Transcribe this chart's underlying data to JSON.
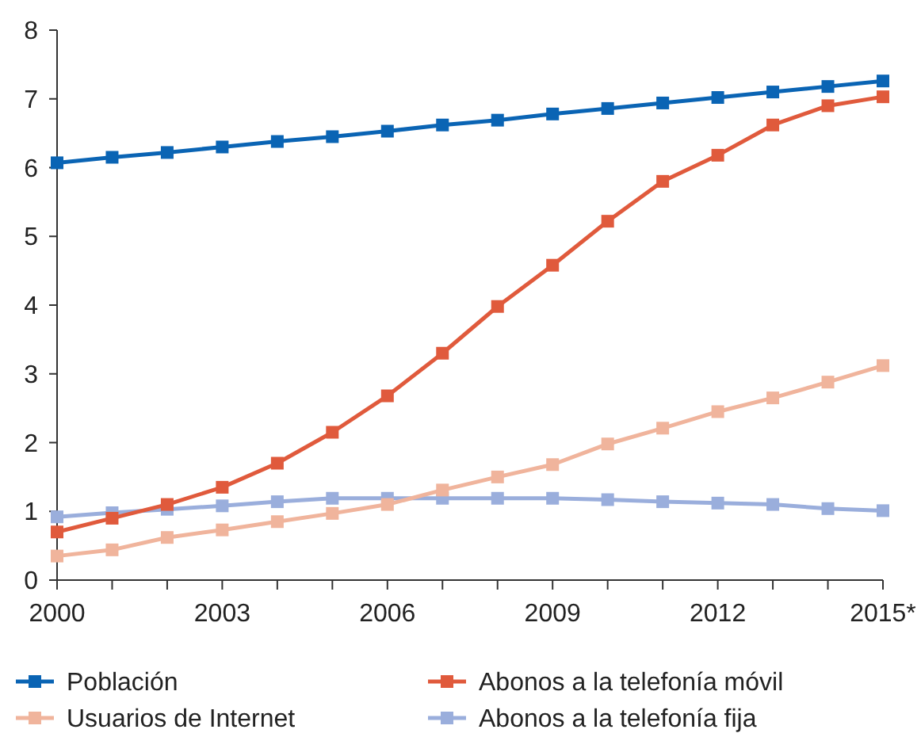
{
  "chart_data": {
    "type": "line",
    "x": [
      2000,
      2001,
      2002,
      2003,
      2004,
      2005,
      2006,
      2007,
      2008,
      2009,
      2010,
      2011,
      2012,
      2013,
      2014,
      2015
    ],
    "series": [
      {
        "name": "Población",
        "color": "#0a64b4",
        "values": [
          6.07,
          6.15,
          6.22,
          6.3,
          6.38,
          6.45,
          6.53,
          6.62,
          6.69,
          6.78,
          6.86,
          6.94,
          7.02,
          7.1,
          7.18,
          7.26
        ]
      },
      {
        "name": "Abonos a la telefonía móvil",
        "color": "#e05a3c",
        "values": [
          0.7,
          0.9,
          1.1,
          1.35,
          1.7,
          2.15,
          2.68,
          3.3,
          3.98,
          4.58,
          5.22,
          5.8,
          6.18,
          6.62,
          6.9,
          7.03
        ]
      },
      {
        "name": "Usuarios de Internet",
        "color": "#f0b49c",
        "values": [
          0.35,
          0.44,
          0.62,
          0.73,
          0.85,
          0.97,
          1.1,
          1.31,
          1.5,
          1.68,
          1.98,
          2.21,
          2.45,
          2.65,
          2.88,
          3.12
        ]
      },
      {
        "name": "Abonos a la telefonía fija",
        "color": "#9aaedc",
        "values": [
          0.92,
          0.98,
          1.03,
          1.08,
          1.14,
          1.19,
          1.19,
          1.19,
          1.19,
          1.19,
          1.17,
          1.14,
          1.12,
          1.1,
          1.04,
          1.01
        ]
      }
    ],
    "xlim": [
      2000,
      2015
    ],
    "xticks": [
      2000,
      {
        "value": 2001,
        "label": null
      },
      {
        "value": 2002,
        "label": null
      },
      2003,
      {
        "value": 2004,
        "label": null
      },
      {
        "value": 2005,
        "label": null
      },
      2006,
      {
        "value": 2007,
        "label": null
      },
      {
        "value": 2008,
        "label": null
      },
      2009,
      {
        "value": 2010,
        "label": null
      },
      {
        "value": 2011,
        "label": null
      },
      2012,
      {
        "value": 2013,
        "label": null
      },
      {
        "value": 2014,
        "label": null
      },
      {
        "value": 2015,
        "label": "2015*"
      }
    ],
    "ylim": [
      0,
      8
    ],
    "yticks": [
      0,
      1,
      2,
      3,
      4,
      5,
      6,
      7,
      8
    ],
    "grid": false,
    "legend": "bottom",
    "marker": "square",
    "line_style": "solid"
  }
}
